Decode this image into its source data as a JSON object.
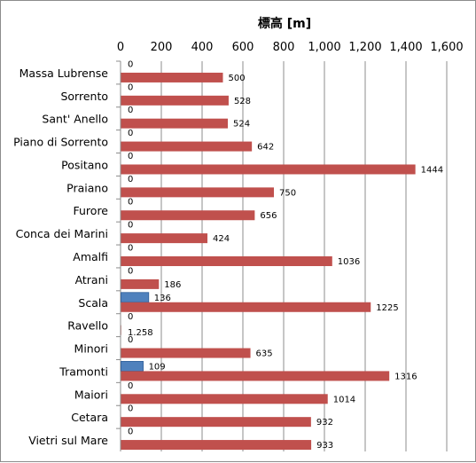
{
  "chart_data": {
    "type": "bar",
    "orientation": "horizontal",
    "title": "標高 [m]",
    "xlim": [
      0,
      1600
    ],
    "x_ticks": [
      "0",
      "200",
      "400",
      "600",
      "800",
      "1,000",
      "1,200",
      "1,400",
      "1,600"
    ],
    "x_tick_values": [
      0,
      200,
      400,
      600,
      800,
      1000,
      1200,
      1400,
      1600
    ],
    "grid": true,
    "legend": "none",
    "categories": [
      "Massa Lubrense",
      "Sorrento",
      "Sant' Anello",
      "Piano di Sorrento",
      "Positano",
      "Praiano",
      "Furore",
      "Conca dei Marini",
      "Amalfi",
      "Atrani",
      "Scala",
      "Ravello",
      "Minori",
      "Tramonti",
      "Maiori",
      "Cetara",
      "Vietri sul Mare"
    ],
    "series": [
      {
        "color": "#4f81bd",
        "values": [
          0,
          0,
          0,
          0,
          0,
          0,
          0,
          0,
          0,
          0,
          136,
          0,
          0,
          109,
          0,
          0,
          0
        ],
        "labels": [
          "0",
          "0",
          "0",
          "0",
          "0",
          "0",
          "0",
          "0",
          "0",
          "0",
          "136",
          "0",
          "0",
          "109",
          "0",
          "0",
          "0"
        ]
      },
      {
        "color": "#c0504d",
        "values": [
          500,
          528,
          524,
          642,
          1444,
          750,
          656,
          424,
          1036,
          186,
          1225,
          1.258,
          635,
          1316,
          1014,
          932,
          933
        ],
        "labels": [
          "500",
          "528",
          "524",
          "642",
          "1444",
          "750",
          "656",
          "424",
          "1036",
          "186",
          "1225",
          "1.258",
          "635",
          "1316",
          "1014",
          "932",
          "933"
        ]
      }
    ]
  }
}
